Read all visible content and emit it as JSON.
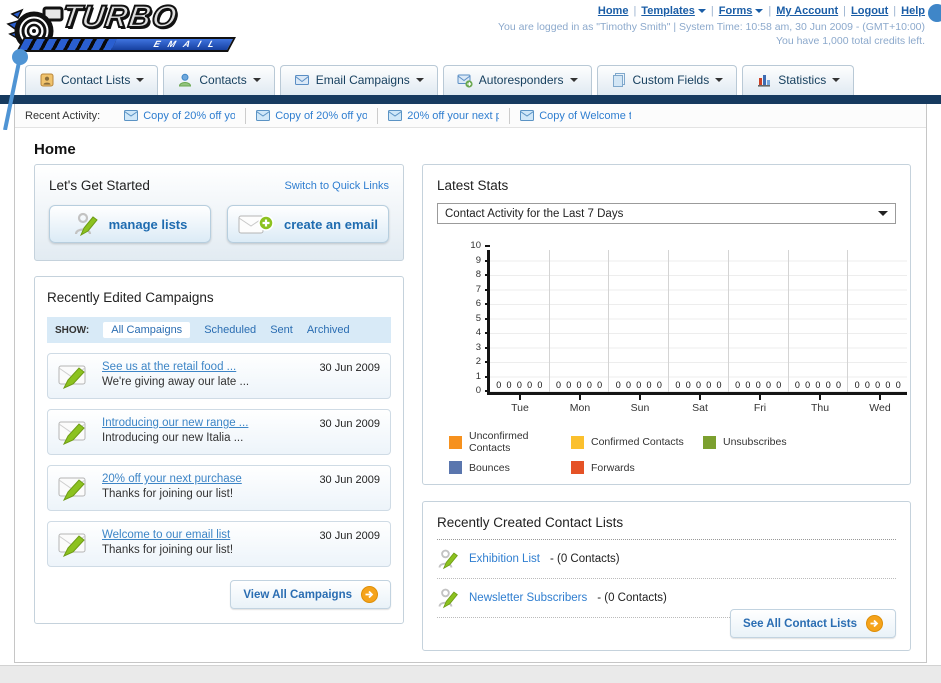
{
  "header": {
    "logo_title": "TURBO",
    "logo_subtitle": "EMAIL",
    "separator": "|",
    "nav": [
      {
        "label": "Home",
        "dropdown": false
      },
      {
        "label": "Templates",
        "dropdown": true
      },
      {
        "label": "Forms",
        "dropdown": true
      },
      {
        "label": "My Account",
        "dropdown": false
      },
      {
        "label": "Logout",
        "dropdown": false
      },
      {
        "label": "Help",
        "dropdown": false
      }
    ],
    "login_status": "You are logged in as \"Timothy Smith\" | System Time: 10:58 am, 30 Jun 2009 - (GMT+10:00)",
    "credits": "You have 1,000 total credits left."
  },
  "tabs": [
    {
      "label": "Contact Lists"
    },
    {
      "label": "Contacts"
    },
    {
      "label": "Email Campaigns"
    },
    {
      "label": "Autoresponders"
    },
    {
      "label": "Custom Fields"
    },
    {
      "label": "Statistics"
    }
  ],
  "recent_activity": {
    "label": "Recent Activity:",
    "items": [
      "Copy of 20% off yo",
      "Copy of 20% off yo",
      "20% off your next p",
      "Copy of Welcome to"
    ]
  },
  "page_title": "Home",
  "get_started": {
    "title": "Let's Get Started",
    "switch_link": "Switch to Quick Links",
    "manage_btn": "manage lists",
    "create_btn": "create an email"
  },
  "campaigns": {
    "title": "Recently Edited Campaigns",
    "show_label": "SHOW:",
    "filters": [
      "All Campaigns",
      "Scheduled",
      "Sent",
      "Archived"
    ],
    "active_filter": "All Campaigns",
    "items": [
      {
        "title": "See us at the retail food ...",
        "subtitle": "We're giving away our late ...",
        "date": "30 Jun 2009"
      },
      {
        "title": "Introducing our new range ...",
        "subtitle": "Introducing our new Italia ...",
        "date": "30 Jun 2009"
      },
      {
        "title": "20% off your next purchase",
        "subtitle": "Thanks for joining our list!",
        "date": "30 Jun 2009"
      },
      {
        "title": "Welcome to our email list",
        "subtitle": "Thanks for joining our list!",
        "date": "30 Jun 2009"
      }
    ],
    "view_all": "View All Campaigns"
  },
  "stats": {
    "title": "Latest Stats",
    "dropdown_value": "Contact Activity for the Last 7 Days"
  },
  "chart_data": {
    "type": "bar",
    "title": "Contact Activity for the Last 7 Days",
    "categories": [
      "Tue",
      "Mon",
      "Sun",
      "Sat",
      "Fri",
      "Thu",
      "Wed"
    ],
    "series": [
      {
        "name": "Unconfirmed Contacts",
        "color": "#F6911E",
        "values": [
          0,
          0,
          0,
          0,
          0,
          0,
          0
        ]
      },
      {
        "name": "Confirmed Contacts",
        "color": "#FBC02D",
        "values": [
          0,
          0,
          0,
          0,
          0,
          0,
          0
        ]
      },
      {
        "name": "Unsubscribes",
        "color": "#7CA02F",
        "values": [
          0,
          0,
          0,
          0,
          0,
          0,
          0
        ]
      },
      {
        "name": "Bounces",
        "color": "#5A76AE",
        "values": [
          0,
          0,
          0,
          0,
          0,
          0,
          0
        ]
      },
      {
        "name": "Forwards",
        "color": "#E55226",
        "values": [
          0,
          0,
          0,
          0,
          0,
          0,
          0
        ]
      }
    ],
    "ylim": [
      0,
      10
    ],
    "ytick_step": 1,
    "grid": true,
    "legend_position": "bottom"
  },
  "contact_lists": {
    "title": "Recently Created Contact Lists",
    "items": [
      {
        "name": "Exhibition List",
        "count": "- (0 Contacts)"
      },
      {
        "name": "Newsletter Subscribers",
        "count": "- (0 Contacts)"
      }
    ],
    "see_all": "See All Contact Lists"
  }
}
